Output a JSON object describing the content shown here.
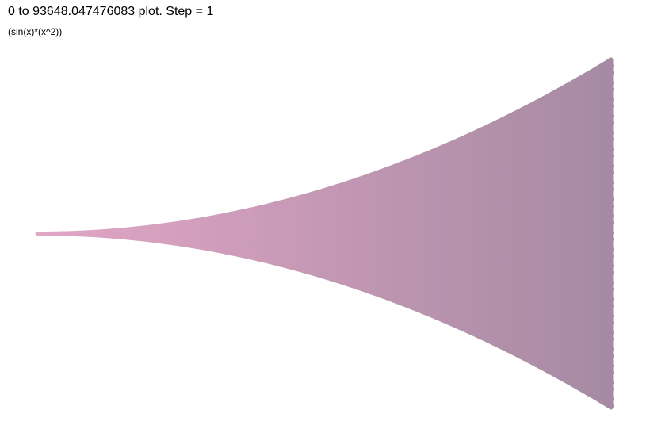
{
  "chart_data": {
    "type": "scatter",
    "title": "0 to 93648.047476083 plot. Step = 1",
    "subtitle": "(sin(x)*(x^2))",
    "function": "sin(x)*(x^2)",
    "x_start": 0,
    "x_end": 93648.047476083,
    "step": 1,
    "xlim": [
      0,
      93648.047476083
    ],
    "ylim": [
      -8770000000,
      8770000000
    ],
    "grid": false,
    "axes_visible": false,
    "legend": "none",
    "colors": {
      "start": "#e2a6c6",
      "end": "#a68aa3"
    }
  }
}
